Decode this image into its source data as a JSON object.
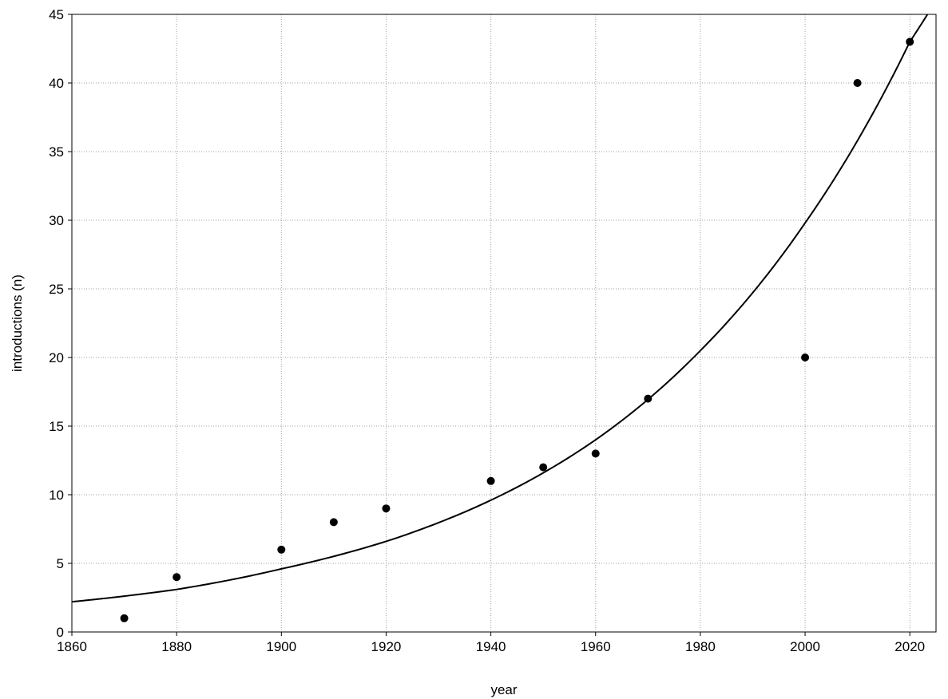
{
  "chart_data": {
    "type": "scatter",
    "title": "",
    "xlabel": "year",
    "ylabel": "introductions (n)",
    "xlim": [
      1860,
      2025
    ],
    "ylim": [
      0,
      45
    ],
    "x_ticks": [
      1860,
      1880,
      1900,
      1920,
      1940,
      1960,
      1980,
      2000,
      2020
    ],
    "y_ticks": [
      0,
      5,
      10,
      15,
      20,
      25,
      30,
      35,
      40,
      45
    ],
    "grid": true,
    "legend": "none",
    "colors": {
      "points": "#000000",
      "fit_line": "#000000",
      "grid": "#a0a0a0"
    },
    "points": [
      {
        "x": 1870,
        "y": 1
      },
      {
        "x": 1880,
        "y": 4
      },
      {
        "x": 1900,
        "y": 6
      },
      {
        "x": 1910,
        "y": 8
      },
      {
        "x": 1920,
        "y": 9
      },
      {
        "x": 1940,
        "y": 11
      },
      {
        "x": 1950,
        "y": 12
      },
      {
        "x": 1960,
        "y": 13
      },
      {
        "x": 1970,
        "y": 17
      },
      {
        "x": 2000,
        "y": 20
      },
      {
        "x": 2010,
        "y": 40
      },
      {
        "x": 2020,
        "y": 43
      }
    ],
    "fit_curve": {
      "type": "exponential",
      "points": [
        {
          "x": 1860,
          "y": 2.2
        },
        {
          "x": 1880,
          "y": 3.1
        },
        {
          "x": 1900,
          "y": 4.6
        },
        {
          "x": 1920,
          "y": 6.6
        },
        {
          "x": 1940,
          "y": 9.6
        },
        {
          "x": 1960,
          "y": 14.0
        },
        {
          "x": 1980,
          "y": 20.5
        },
        {
          "x": 2000,
          "y": 29.8
        },
        {
          "x": 2020,
          "y": 43.0
        },
        {
          "x": 2025,
          "y": 46.0
        }
      ]
    }
  }
}
